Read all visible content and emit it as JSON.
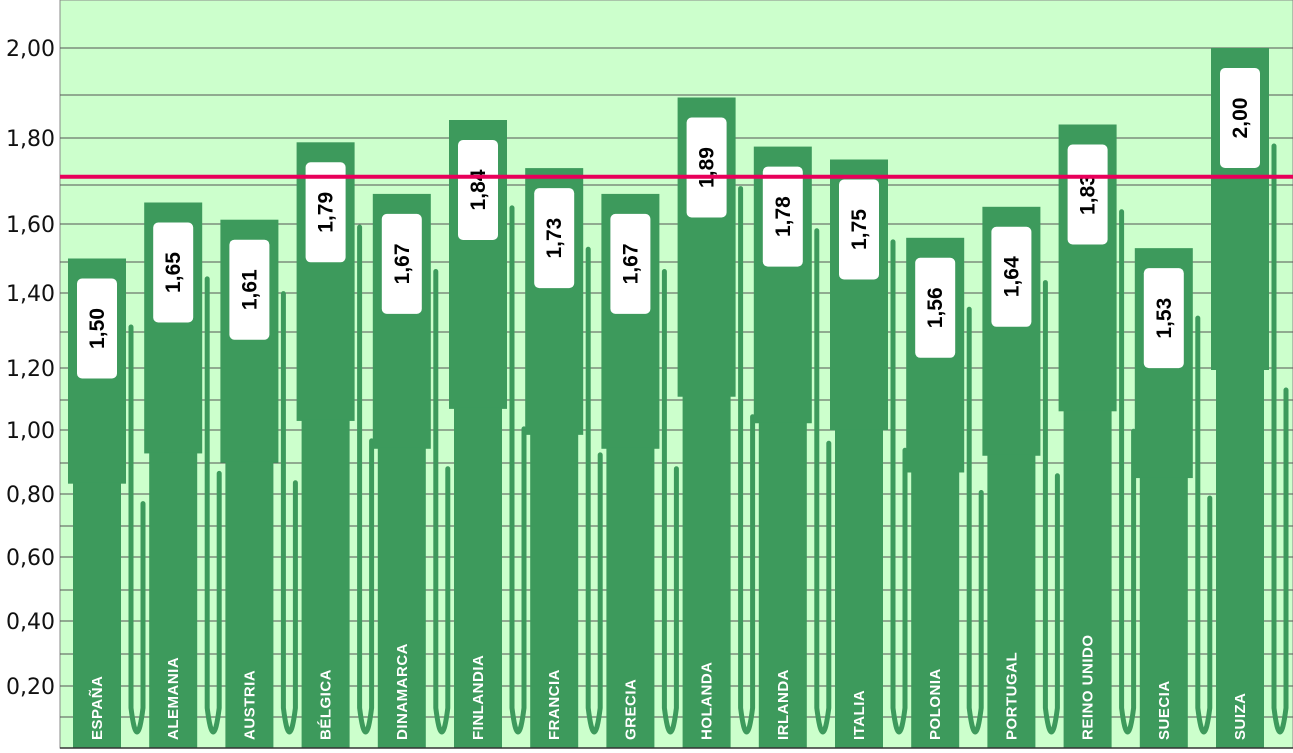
{
  "chart_data": {
    "type": "bar",
    "title": "",
    "xlabel": "",
    "ylabel": "",
    "categories": [
      "ESPAÑA",
      "ALEMANIA",
      "AUSTRIA",
      "BÉLGICA",
      "DINAMARCA",
      "FINLANDIA",
      "FRANCIA",
      "GRECIA",
      "HOLANDA",
      "IRLANDA",
      "ITALIA",
      "POLONIA",
      "PORTUGAL",
      "REINO UNIDO",
      "SUECIA",
      "SUIZA"
    ],
    "values": [
      1.5,
      1.65,
      1.61,
      1.79,
      1.67,
      1.84,
      1.73,
      1.67,
      1.89,
      1.78,
      1.75,
      1.56,
      1.64,
      1.83,
      1.53,
      2.0
    ],
    "value_labels": [
      "1,50",
      "1,65",
      "1,61",
      "1,79",
      "1,67",
      "1,84",
      "1,73",
      "1,67",
      "1,89",
      "1,78",
      "1,75",
      "1,56",
      "1,64",
      "1,83",
      "1,53",
      "2,00"
    ],
    "y_tick_labels": [
      "2,00",
      "1,80",
      "1,60",
      "1,40",
      "1,20",
      "1,00",
      "0,80",
      "0,60",
      "0,40",
      "0,20"
    ],
    "y_tick_values": [
      2.0,
      1.8,
      1.6,
      1.4,
      1.2,
      1.0,
      0.8,
      0.6,
      0.4,
      0.2
    ],
    "ylim": [
      0,
      2.1
    ],
    "grid": true,
    "reference_line": 1.71,
    "legend": "none",
    "colors": {
      "background": "#ccffcc",
      "bar": "#3d9a5c",
      "reference_line": "#e8005a",
      "grid": "#555555"
    },
    "bar_shape": "bottle"
  }
}
